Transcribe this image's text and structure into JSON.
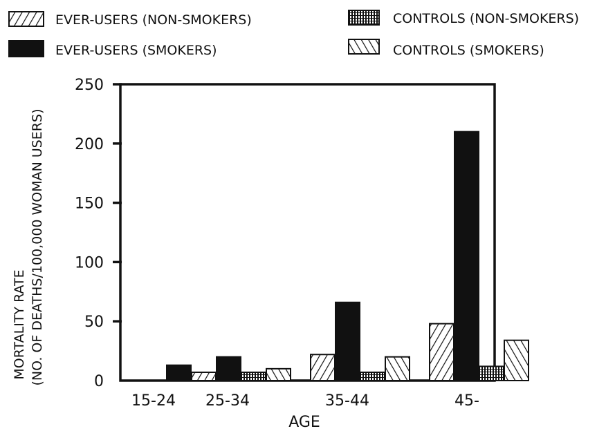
{
  "chart_data": {
    "type": "bar",
    "title": "",
    "xlabel": "AGE",
    "ylabel_line1": "MORTALITY RATE",
    "ylabel_line2": "(NO. OF DEATHS/100,000 WOMAN USERS)",
    "categories": [
      "15-24",
      "25-34",
      "35-44",
      "45-"
    ],
    "ylim": [
      0,
      250
    ],
    "yticks": [
      0,
      50,
      100,
      150,
      200,
      250
    ],
    "grid": false,
    "legend_position": "top",
    "series": [
      {
        "name": "EVER-USERS (NON-SMOKERS)",
        "pattern": "hatch-forward",
        "values": [
          0,
          7,
          22,
          48
        ]
      },
      {
        "name": "EVER-USERS (SMOKERS)",
        "pattern": "solid",
        "color": "#111111",
        "values": [
          13,
          20,
          66,
          210
        ]
      },
      {
        "name": "CONTROLS (NON-SMOKERS)",
        "pattern": "dots-grid",
        "values": [
          0,
          7,
          7,
          12
        ]
      },
      {
        "name": "CONTROLS (SMOKERS)",
        "pattern": "hatch-backward",
        "values": [
          0,
          10,
          20,
          34
        ]
      }
    ]
  }
}
